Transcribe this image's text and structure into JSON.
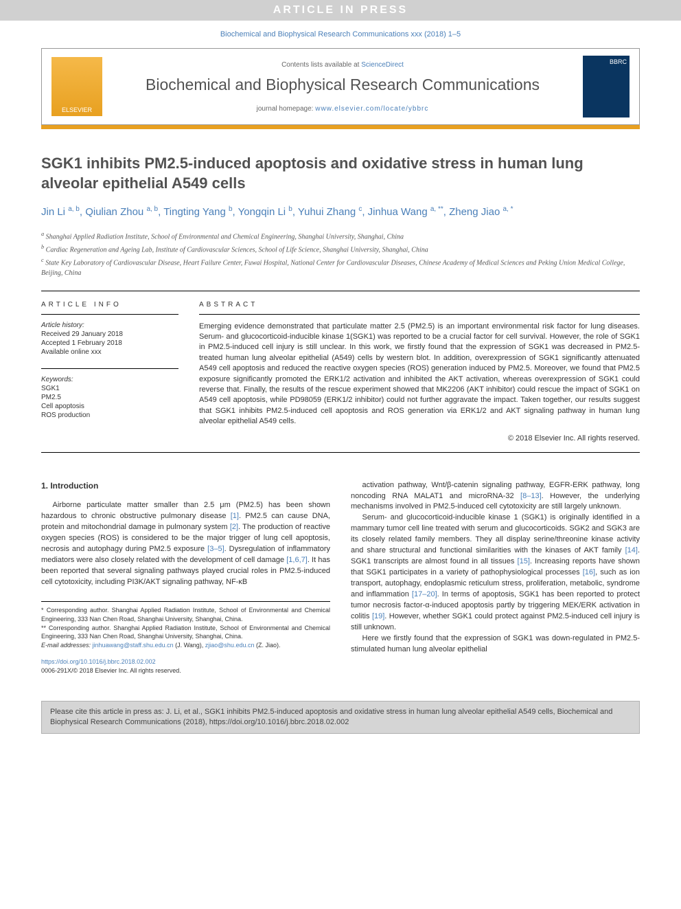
{
  "banner": {
    "article_in_press": "ARTICLE IN PRESS",
    "journal_ref": "Biochemical and Biophysical Research Communications xxx (2018) 1–5"
  },
  "masthead": {
    "elsevier": "ELSEVIER",
    "contents_prefix": "Contents lists available at ",
    "contents_link": "ScienceDirect",
    "journal_title": "Biochemical and Biophysical Research Communications",
    "homepage_prefix": "journal homepage: ",
    "homepage_url": "www.elsevier.com/locate/ybbrc",
    "cover_abbr": "BBRC"
  },
  "article": {
    "title": "SGK1 inhibits PM2.5-induced apoptosis and oxidative stress in human lung alveolar epithelial A549 cells",
    "authors_html": "Jin Li <sup>a, b</sup>, Qiulian Zhou <sup>a, b</sup>, Tingting Yang <sup>b</sup>, Yongqin Li <sup>b</sup>, Yuhui Zhang <sup>c</sup>, Jinhua Wang <sup>a, **</sup>, Zheng Jiao <sup>a, *</sup>",
    "affiliations": [
      "a Shanghai Applied Radiation Institute, School of Environmental and Chemical Engineering, Shanghai University, Shanghai, China",
      "b Cardiac Regeneration and Ageing Lab, Institute of Cardiovascular Sciences, School of Life Science, Shanghai University, Shanghai, China",
      "c State Key Laboratory of Cardiovascular Disease, Heart Failure Center, Fuwai Hospital, National Center for Cardiovascular Diseases, Chinese Academy of Medical Sciences and Peking Union Medical College, Beijing, China"
    ]
  },
  "info": {
    "heading": "ARTICLE INFO",
    "history_label": "Article history:",
    "received": "Received 29 January 2018",
    "accepted": "Accepted 1 February 2018",
    "online": "Available online xxx",
    "keywords_label": "Keywords:",
    "keywords": [
      "SGK1",
      "PM2.5",
      "Cell apoptosis",
      "ROS production"
    ]
  },
  "abstract": {
    "heading": "ABSTRACT",
    "text": "Emerging evidence demonstrated that particulate matter 2.5 (PM2.5) is an important environmental risk factor for lung diseases. Serum- and glucocorticoid-inducible kinase 1(SGK1) was reported to be a crucial factor for cell survival. However, the role of SGK1 in PM2.5-induced cell injury is still unclear. In this work, we firstly found that the expression of SGK1 was decreased in PM2.5-treated human lung alveolar epithelial (A549) cells by western blot. In addition, overexpression of SGK1 significantly attenuated A549 cell apoptosis and reduced the reactive oxygen species (ROS) generation induced by PM2.5. Moreover, we found that PM2.5 exposure significantly promoted the ERK1/2 activation and inhibited the AKT activation, whereas overexpression of SGK1 could reverse that. Finally, the results of the rescue experiment showed that MK2206 (AKT inhibitor) could rescue the impact of SGK1 on A549 cell apoptosis, while PD98059 (ERK1/2 inhibitor) could not further aggravate the impact. Taken together, our results suggest that SGK1 inhibits PM2.5-induced cell apoptosis and ROS generation via ERK1/2 and AKT signaling pathway in human lung alveolar epithelial A549 cells.",
    "copyright": "© 2018 Elsevier Inc. All rights reserved."
  },
  "body": {
    "section_heading": "1. Introduction",
    "col1_p1": "Airborne particulate matter smaller than 2.5 μm (PM2.5) has been shown hazardous to chronic obstructive pulmonary disease [1]. PM2.5 can cause DNA, protein and mitochondrial damage in pulmonary system [2]. The production of reactive oxygen species (ROS) is considered to be the major trigger of lung cell apoptosis, necrosis and autophagy during PM2.5 exposure [3–5]. Dysregulation of inflammatory mediators were also closely related with the development of cell damage [1,6,7]. It has been reported that several signaling pathways played crucial roles in PM2.5-induced cell cytotoxicity, including PI3K/AKT signaling pathway, NF-κB",
    "col2_p1": "activation pathway, Wnt/β-catenin signaling pathway, EGFR-ERK pathway, long noncoding RNA MALAT1 and microRNA-32 [8–13]. However, the underlying mechanisms involved in PM2.5-induced cell cytotoxicity are still largely unknown.",
    "col2_p2": "Serum- and glucocorticoid-inducible kinase 1 (SGK1) is originally identified in a mammary tumor cell line treated with serum and glucocorticoids. SGK2 and SGK3 are its closely related family members. They all display serine/threonine kinase activity and share structural and functional similarities with the kinases of AKT family [14]. SGK1 transcripts are almost found in all tissues [15]. Increasing reports have shown that SGK1 participates in a variety of pathophysiological processes [16], such as ion transport, autophagy, endoplasmic reticulum stress, proliferation, metabolic, syndrome and inflammation [17–20]. In terms of apoptosis, SGK1 has been reported to protect tumor necrosis factor-α-induced apoptosis partly by triggering MEK/ERK activation in colitis [19]. However, whether SGK1 could protect against PM2.5-induced cell injury is still unknown.",
    "col2_p3": "Here we firstly found that the expression of SGK1 was down-regulated in PM2.5-stimulated human lung alveolar epithelial"
  },
  "footnotes": {
    "corr1": "* Corresponding author. Shanghai Applied Radiation Institute, School of Environmental and Chemical Engineering, 333 Nan Chen Road, Shanghai University, Shanghai, China.",
    "corr2": "** Corresponding author. Shanghai Applied Radiation Institute, School of Environmental and Chemical Engineering, 333 Nan Chen Road, Shanghai University, Shanghai, China.",
    "email_label": "E-mail addresses: ",
    "email1": "jinhuawang@staff.shu.edu.cn",
    "email1_who": " (J. Wang), ",
    "email2": "zjiao@shu.edu.cn",
    "email2_who": " (Z. Jiao)."
  },
  "doi": {
    "url": "https://doi.org/10.1016/j.bbrc.2018.02.002",
    "issn_line": "0006-291X/© 2018 Elsevier Inc. All rights reserved."
  },
  "citebox": {
    "text": "Please cite this article in press as: J. Li, et al., SGK1 inhibits PM2.5-induced apoptosis and oxidative stress in human lung alveolar epithelial A549 cells, Biochemical and Biophysical Research Communications (2018), https://doi.org/10.1016/j.bbrc.2018.02.002"
  },
  "colors": {
    "link": "#4a7fb8",
    "orange": "#e8a020",
    "banner_gray": "#d0d0d0",
    "citebox_bg": "#d5d5d5"
  }
}
